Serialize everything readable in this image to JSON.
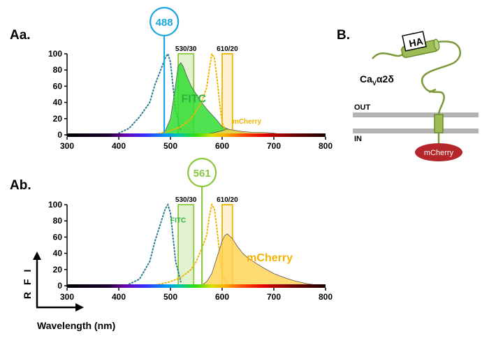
{
  "panels": {
    "aa": "Aa.",
    "ab": "Ab.",
    "b": "B."
  },
  "axis": {
    "ylabel": "R F I",
    "xlabel": "Wavelength (nm)"
  },
  "schematic": {
    "tag": "HA",
    "protein_main": "Ca",
    "protein_sub": "V",
    "protein_rest": "α2δ",
    "out": "OUT",
    "in": "IN",
    "fusion": "mCherry"
  },
  "colors": {
    "fitc_fill": "#33dd33",
    "fitc_ex": "#2a7d8f",
    "mcherry_fill": "#ffd24d",
    "mcherry_ex": "#f2b400",
    "laser488": "#1aa7e0",
    "laser561": "#8cc63f",
    "filter530": "#8cc63f",
    "filter610": "#f2b400",
    "fitc_text": "#2ab13e",
    "mcherry_text": "#f2b400",
    "membrane": "#b3b3b3",
    "olive": "#7a9a3a",
    "cherry": "#b5262b"
  },
  "chart_data": [
    {
      "type": "line",
      "panel": "Aa.",
      "title": "",
      "xlabel": "Wavelength (nm)",
      "ylabel": "R F I",
      "xlim": [
        300,
        800
      ],
      "ylim": [
        0,
        100
      ],
      "x_ticks": [
        300,
        400,
        500,
        600,
        700,
        800
      ],
      "y_ticks": [
        0,
        20,
        40,
        60,
        80,
        100
      ],
      "laser": {
        "label": "488",
        "x": 488
      },
      "filters": [
        {
          "label": "530/30",
          "center": 530,
          "width": 30
        },
        {
          "label": "610/20",
          "center": 610,
          "width": 20
        }
      ],
      "dye_labels": [
        {
          "text": "FITC",
          "x": 545,
          "y": 40,
          "size": "large"
        },
        {
          "text": "mCherry",
          "x": 648,
          "y": 14,
          "size": "small"
        }
      ],
      "series": [
        {
          "name": "FITC excitation",
          "style": "dotted",
          "fill": false,
          "x": [
            400,
            420,
            440,
            460,
            470,
            480,
            490,
            495,
            500,
            505,
            510,
            520
          ],
          "y": [
            2,
            8,
            22,
            40,
            62,
            78,
            95,
            100,
            90,
            60,
            30,
            5
          ]
        },
        {
          "name": "FITC emission",
          "style": "area",
          "fill": true,
          "x": [
            480,
            490,
            500,
            505,
            510,
            515,
            520,
            525,
            530,
            540,
            550,
            560,
            570,
            580,
            590,
            600,
            620,
            650,
            690
          ],
          "y": [
            0,
            5,
            20,
            40,
            62,
            85,
            89,
            84,
            75,
            60,
            50,
            40,
            32,
            25,
            18,
            10,
            5,
            2,
            0
          ]
        },
        {
          "name": "mCherry excitation",
          "style": "dotted",
          "fill": false,
          "x": [
            460,
            480,
            500,
            520,
            540,
            550,
            560,
            570,
            575,
            580,
            585,
            590,
            595,
            600,
            610
          ],
          "y": [
            0,
            2,
            5,
            10,
            20,
            30,
            40,
            58,
            80,
            100,
            95,
            70,
            40,
            15,
            0
          ]
        },
        {
          "name": "mCherry emission",
          "style": "area",
          "fill": true,
          "scale": "low",
          "x": [
            560,
            580,
            600,
            610,
            620,
            640,
            660,
            680,
            700,
            720
          ],
          "y": [
            0,
            2,
            5,
            7,
            6,
            4,
            3,
            3,
            2,
            0
          ]
        }
      ]
    },
    {
      "type": "line",
      "panel": "Ab.",
      "title": "",
      "xlabel": "Wavelength (nm)",
      "ylabel": "R F I",
      "xlim": [
        300,
        800
      ],
      "ylim": [
        0,
        100
      ],
      "x_ticks": [
        300,
        400,
        500,
        600,
        700,
        800
      ],
      "y_ticks": [
        0,
        20,
        40,
        60,
        80,
        100
      ],
      "laser": {
        "label": "561",
        "x": 561
      },
      "filters": [
        {
          "label": "530/30",
          "center": 530,
          "width": 30
        },
        {
          "label": "610/20",
          "center": 610,
          "width": 20
        }
      ],
      "dye_labels": [
        {
          "text": "FITC",
          "x": 515,
          "y": 78,
          "size": "small"
        },
        {
          "text": "mCherry",
          "x": 692,
          "y": 30,
          "size": "large"
        }
      ],
      "series": [
        {
          "name": "FITC excitation",
          "style": "dotted",
          "fill": false,
          "x": [
            420,
            440,
            460,
            470,
            480,
            490,
            495,
            500,
            505,
            510,
            520
          ],
          "y": [
            2,
            8,
            30,
            55,
            75,
            95,
            100,
            90,
            60,
            30,
            5
          ]
        },
        {
          "name": "FITC emission",
          "style": "area",
          "fill": true,
          "scale": "low",
          "x": [
            500,
            520,
            540,
            560,
            580
          ],
          "y": [
            0,
            1,
            1,
            1,
            0
          ]
        },
        {
          "name": "mCherry excitation",
          "style": "dotted",
          "fill": false,
          "x": [
            460,
            480,
            500,
            520,
            540,
            550,
            560,
            570,
            575,
            580,
            585,
            590,
            595,
            600,
            610
          ],
          "y": [
            0,
            2,
            5,
            10,
            20,
            30,
            45,
            62,
            85,
            100,
            95,
            70,
            40,
            15,
            0
          ]
        },
        {
          "name": "mCherry emission",
          "style": "area",
          "fill": true,
          "x": [
            560,
            570,
            580,
            590,
            600,
            605,
            610,
            620,
            630,
            640,
            650,
            660,
            680,
            700,
            720,
            740,
            760,
            790
          ],
          "y": [
            0,
            5,
            15,
            35,
            55,
            62,
            64,
            58,
            48,
            40,
            34,
            30,
            22,
            15,
            10,
            6,
            3,
            0
          ]
        }
      ]
    }
  ]
}
